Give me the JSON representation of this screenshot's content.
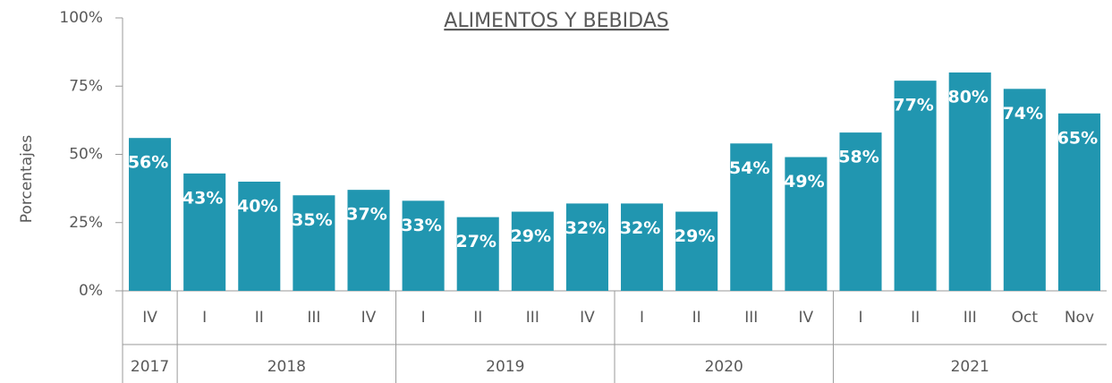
{
  "chart_data": {
    "type": "bar",
    "title": "ALIMENTOS Y BEBIDAS",
    "y_label": "Porcentajes",
    "categories": [
      "IV",
      "I",
      "II",
      "III",
      "IV",
      "I",
      "II",
      "III",
      "IV",
      "I",
      "II",
      "III",
      "IV",
      "I",
      "II",
      "III",
      "Oct",
      "Nov"
    ],
    "group_labels": [
      "2017",
      "2018",
      null,
      null,
      null,
      "2019",
      null,
      null,
      null,
      "2020",
      null,
      null,
      null,
      "2021",
      null,
      null,
      null,
      null
    ],
    "values": [
      56,
      43,
      40,
      35,
      37,
      33,
      27,
      29,
      32,
      32,
      29,
      54,
      49,
      58,
      77,
      80,
      74,
      65
    ],
    "value_labels": [
      "56%",
      "43%",
      "40%",
      "35%",
      "37%",
      "33%",
      "27%",
      "29%",
      "32%",
      "32%",
      "29%",
      "54%",
      "49%",
      "58%",
      "77%",
      "80%",
      "74%",
      "65%"
    ],
    "color": "#2196b0",
    "ylim": [
      0,
      100
    ],
    "yticks": [
      {
        "value": 0,
        "label": "0%"
      },
      {
        "value": 25,
        "label": "25%"
      },
      {
        "value": 50,
        "label": "50%"
      },
      {
        "value": 75,
        "label": "75%"
      },
      {
        "value": 100,
        "label": "100%"
      }
    ],
    "grid": false
  }
}
